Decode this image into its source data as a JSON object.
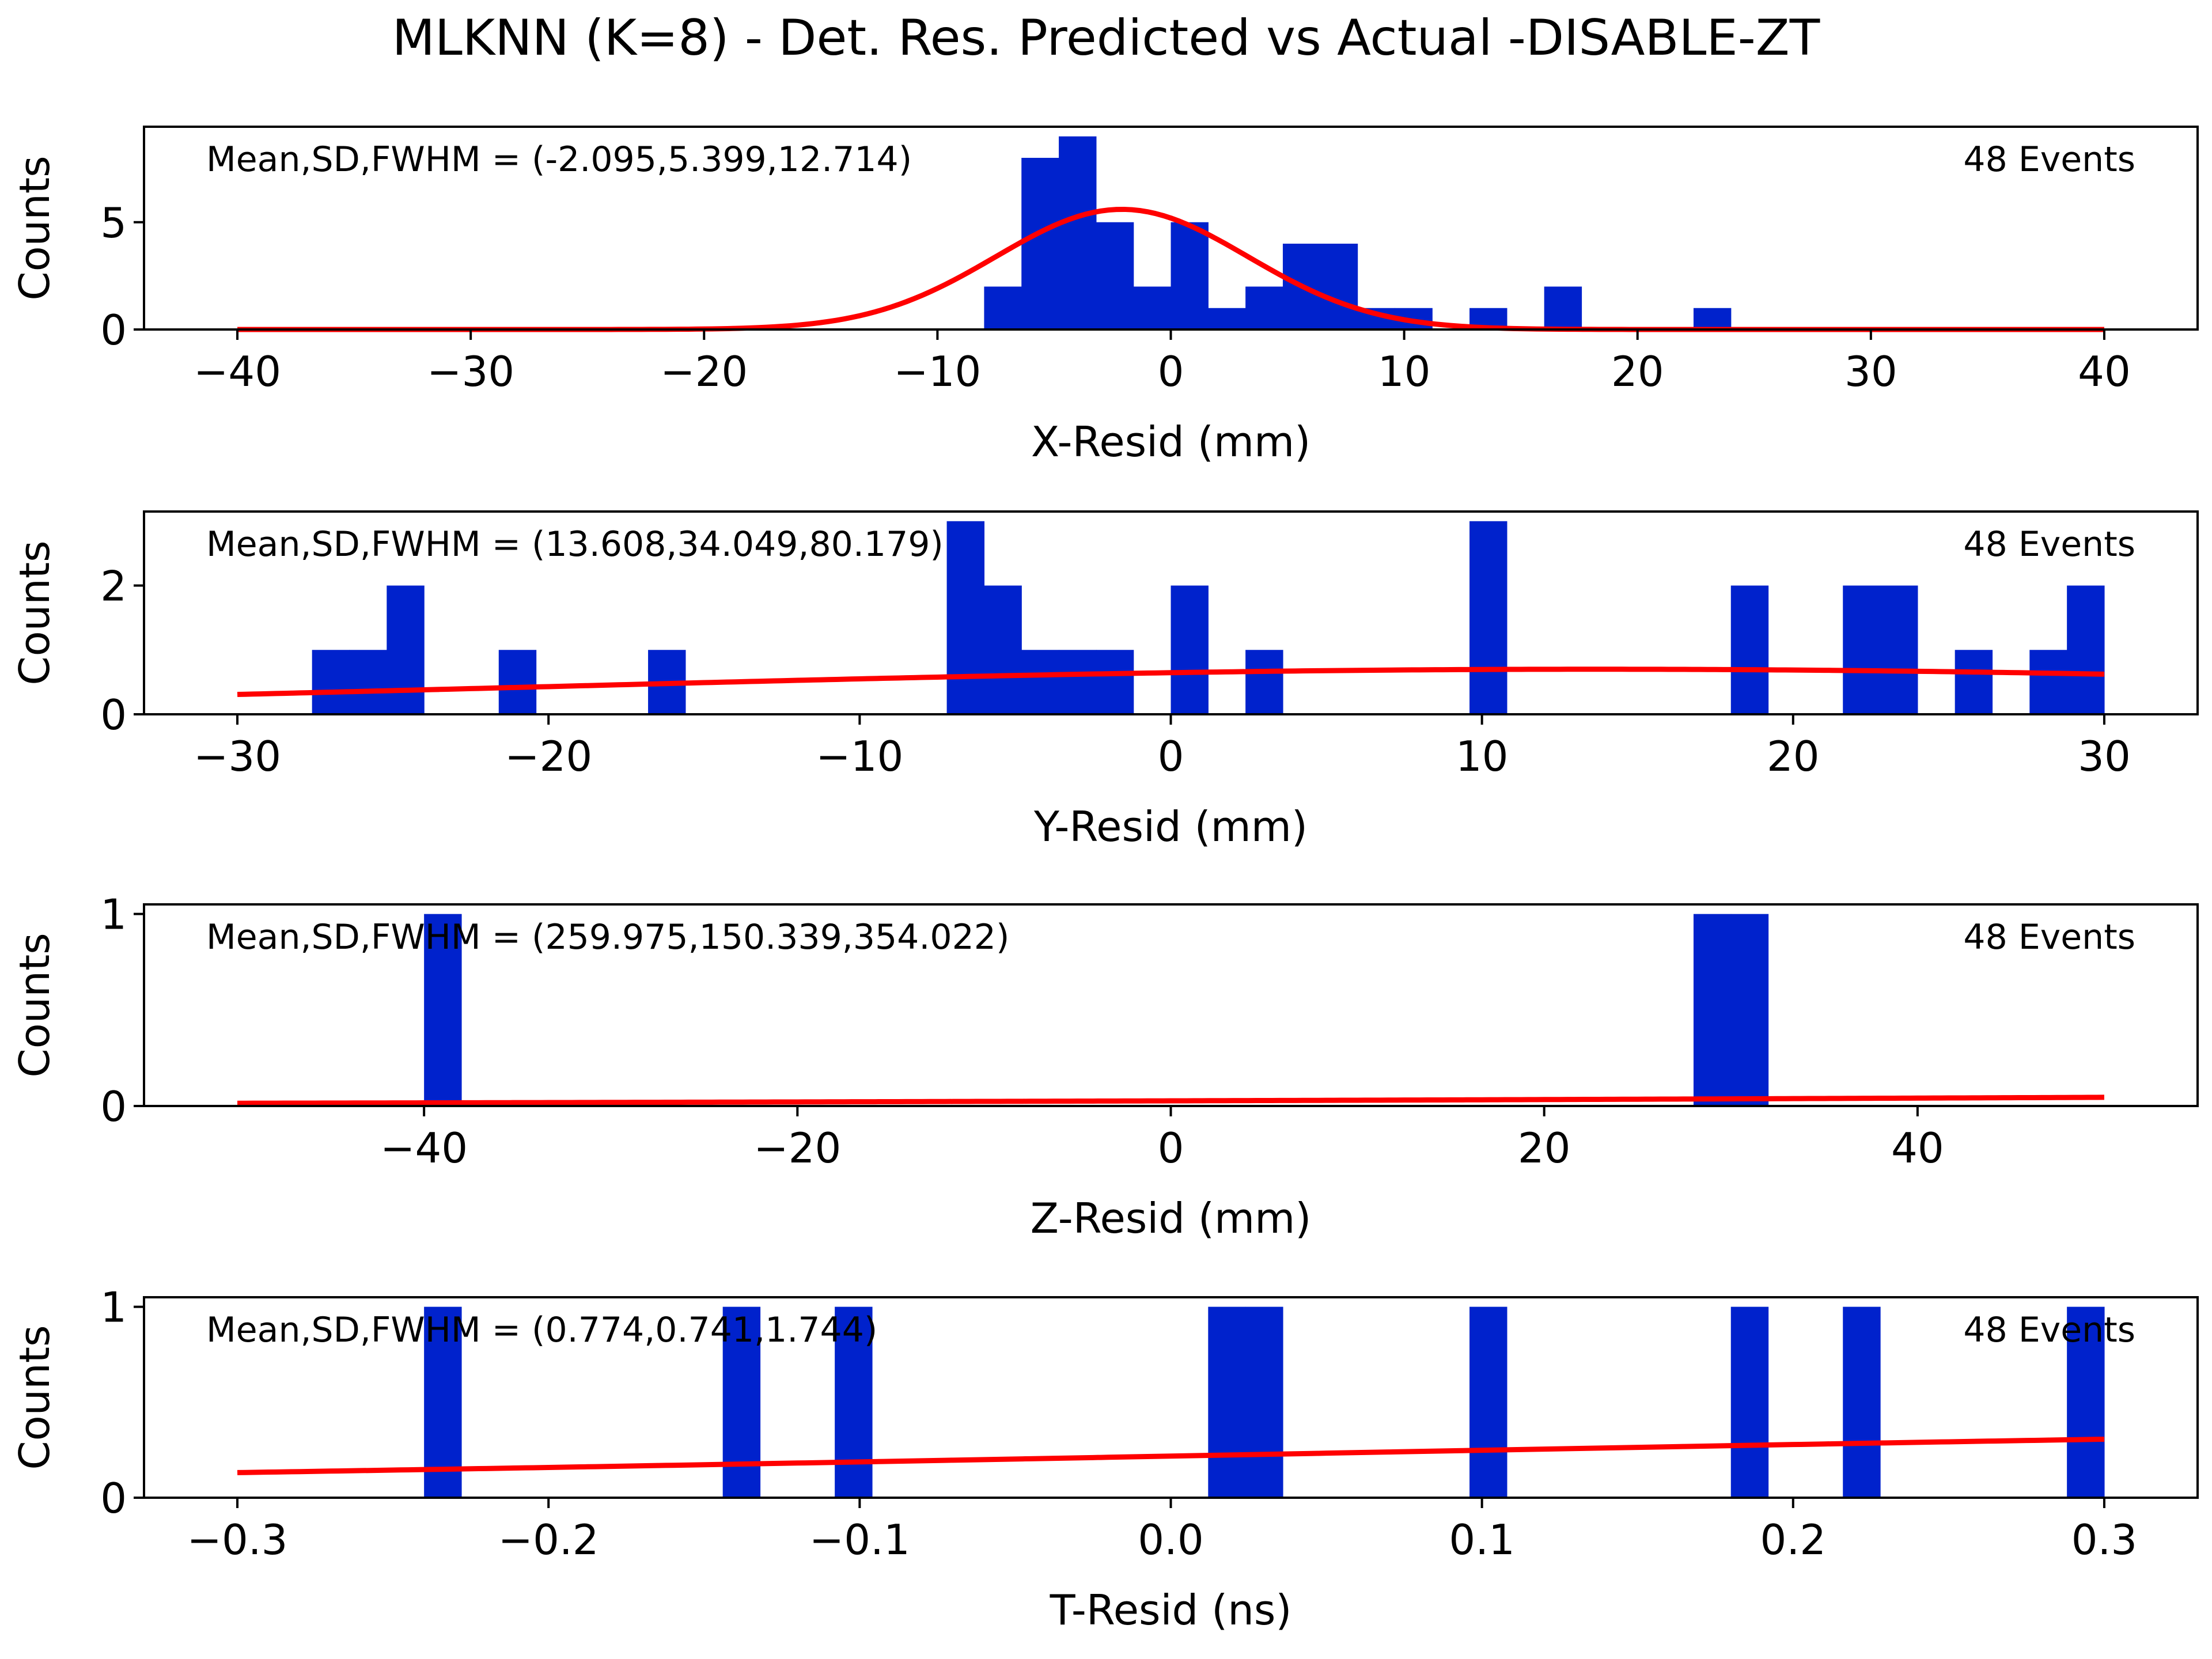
{
  "figure": {
    "title": "MLKNN (K=8) - Det. Res. Predicted vs Actual -DISABLE-ZT"
  },
  "colors": {
    "bars": "#0022cc",
    "fit_line": "#ff0000",
    "axes": "#000000"
  },
  "chart_data": [
    {
      "type": "bar",
      "panel": "x",
      "xlabel": "X-Resid (mm)",
      "ylabel": "Counts",
      "xlim": [
        -44,
        44
      ],
      "ylim": [
        0,
        9.45
      ],
      "xticks": [
        -40,
        -30,
        -20,
        -10,
        0,
        10,
        20,
        30,
        40
      ],
      "xtick_labels": [
        "−40",
        "−30",
        "−20",
        "−10",
        "0",
        "10",
        "20",
        "30",
        "40"
      ],
      "yticks": [
        0,
        5
      ],
      "ytick_labels": [
        "0",
        "5"
      ],
      "bin_width": 1.6,
      "bins": [
        {
          "x": -8.0,
          "count": 2
        },
        {
          "x": -6.4,
          "count": 8
        },
        {
          "x": -4.8,
          "count": 9
        },
        {
          "x": -3.2,
          "count": 5
        },
        {
          "x": -1.6,
          "count": 2
        },
        {
          "x": 0.0,
          "count": 5
        },
        {
          "x": 1.6,
          "count": 1
        },
        {
          "x": 3.2,
          "count": 2
        },
        {
          "x": 4.8,
          "count": 4
        },
        {
          "x": 6.4,
          "count": 4
        },
        {
          "x": 8.0,
          "count": 1
        },
        {
          "x": 9.6,
          "count": 1
        },
        {
          "x": 12.8,
          "count": 1
        },
        {
          "x": 16.0,
          "count": 2
        },
        {
          "x": 22.4,
          "count": 1
        }
      ],
      "fit": {
        "amplitude": 5.6,
        "mean": -2.095,
        "sigma": 5.399,
        "x_range": [
          -40,
          40
        ]
      },
      "stats_text": "Mean,SD,FWHM = (-2.095,5.399,12.714)",
      "events_text": "48 Events"
    },
    {
      "type": "bar",
      "panel": "y",
      "xlabel": "Y-Resid (mm)",
      "ylabel": "Counts",
      "xlim": [
        -33,
        33
      ],
      "ylim": [
        0,
        3.15
      ],
      "xticks": [
        -30,
        -20,
        -10,
        0,
        10,
        20,
        30
      ],
      "xtick_labels": [
        "−30",
        "−20",
        "−10",
        "0",
        "10",
        "20",
        "30"
      ],
      "yticks": [
        0,
        2
      ],
      "ytick_labels": [
        "0",
        "2"
      ],
      "bin_width": 1.2,
      "bins": [
        {
          "x": -27.6,
          "count": 1
        },
        {
          "x": -26.4,
          "count": 1
        },
        {
          "x": -25.2,
          "count": 2
        },
        {
          "x": -21.6,
          "count": 1
        },
        {
          "x": -16.8,
          "count": 1
        },
        {
          "x": -7.2,
          "count": 3
        },
        {
          "x": -6.0,
          "count": 2
        },
        {
          "x": -4.8,
          "count": 1
        },
        {
          "x": -3.6,
          "count": 1
        },
        {
          "x": -2.4,
          "count": 1
        },
        {
          "x": 0.0,
          "count": 2
        },
        {
          "x": 2.4,
          "count": 1
        },
        {
          "x": 9.6,
          "count": 3
        },
        {
          "x": 18.0,
          "count": 2
        },
        {
          "x": 21.6,
          "count": 2
        },
        {
          "x": 22.8,
          "count": 2
        },
        {
          "x": 25.2,
          "count": 1
        },
        {
          "x": 27.6,
          "count": 1
        },
        {
          "x": 28.8,
          "count": 2
        }
      ],
      "fit": {
        "amplitude": 0.7,
        "mean": 13.608,
        "sigma": 34.049,
        "x_range": [
          -30,
          30
        ]
      },
      "stats_text": "Mean,SD,FWHM = (13.608,34.049,80.179)",
      "events_text": "48 Events"
    },
    {
      "type": "bar",
      "panel": "z",
      "xlabel": "Z-Resid (mm)",
      "ylabel": "Counts",
      "xlim": [
        -55,
        55
      ],
      "ylim": [
        0,
        1.05
      ],
      "xticks": [
        -40,
        -20,
        0,
        20,
        40
      ],
      "xtick_labels": [
        "−40",
        "−20",
        "0",
        "20",
        "40"
      ],
      "yticks": [
        0,
        1
      ],
      "ytick_labels": [
        "0",
        "1"
      ],
      "bin_width": 2.0,
      "bins": [
        {
          "x": -40.0,
          "count": 1
        },
        {
          "x": 28.0,
          "count": 1
        },
        {
          "x": 30.0,
          "count": 1
        }
      ],
      "fit": {
        "amplitude": 0.12,
        "mean": 259.975,
        "sigma": 150.339,
        "x_range": [
          -50,
          50
        ]
      },
      "stats_text": "Mean,SD,FWHM = (259.975,150.339,354.022)",
      "events_text": "48 Events"
    },
    {
      "type": "bar",
      "panel": "t",
      "xlabel": "T-Resid (ns)",
      "ylabel": "Counts",
      "xlim": [
        -0.33,
        0.33
      ],
      "ylim": [
        0,
        1.05
      ],
      "xticks": [
        -0.3,
        -0.2,
        -0.1,
        0.0,
        0.1,
        0.2,
        0.3
      ],
      "xtick_labels": [
        "−0.3",
        "−0.2",
        "−0.1",
        "0.0",
        "0.1",
        "0.2",
        "0.3"
      ],
      "yticks": [
        0,
        1
      ],
      "ytick_labels": [
        "0",
        "1"
      ],
      "bin_width": 0.012,
      "bins": [
        {
          "x": -0.24,
          "count": 1
        },
        {
          "x": -0.144,
          "count": 1
        },
        {
          "x": -0.108,
          "count": 1
        },
        {
          "x": 0.012,
          "count": 1
        },
        {
          "x": 0.024,
          "count": 1
        },
        {
          "x": 0.096,
          "count": 1
        },
        {
          "x": 0.18,
          "count": 1
        },
        {
          "x": 0.216,
          "count": 1
        },
        {
          "x": 0.288,
          "count": 1
        }
      ],
      "fit": {
        "amplitude": 0.376,
        "mean": 0.774,
        "sigma": 0.741,
        "x_range": [
          -0.3,
          0.3
        ]
      },
      "stats_text": "Mean,SD,FWHM = (0.774,0.741,1.744)",
      "events_text": "48 Events"
    }
  ]
}
